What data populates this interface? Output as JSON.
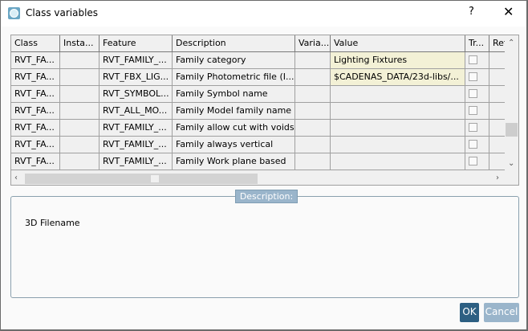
{
  "window": {
    "title": "Class variables",
    "help": "?",
    "close": "✕"
  },
  "table": {
    "columns": [
      "Class",
      "Insta...",
      "Feature",
      "Description",
      "Varia...",
      "Value",
      "Tr...",
      "Ref"
    ],
    "rows": [
      {
        "class": "RVT_FA...",
        "instance": "",
        "feature": "RVT_FAMILY_...",
        "description": "Family category",
        "variant": "",
        "value": "Lighting Fixtures",
        "tr": false
      },
      {
        "class": "RVT_FA...",
        "instance": "",
        "feature": "RVT_FBX_LIG...",
        "description": "Family Photometric file (I...",
        "variant": "",
        "value": "$CADENAS_DATA/23d-libs/...",
        "tr": false
      },
      {
        "class": "RVT_FA...",
        "instance": "",
        "feature": "RVT_SYMBOL...",
        "description": "Family Symbol name",
        "variant": "",
        "value": "",
        "tr": false
      },
      {
        "class": "RVT_FA...",
        "instance": "",
        "feature": "RVT_ALL_MO...",
        "description": "Family Model family name",
        "variant": "",
        "value": "",
        "tr": false
      },
      {
        "class": "RVT_FA...",
        "instance": "",
        "feature": "RVT_FAMILY_...",
        "description": "Family allow cut with voids",
        "variant": "",
        "value": "",
        "tr": false
      },
      {
        "class": "RVT_FA...",
        "instance": "",
        "feature": "RVT_FAMILY_...",
        "description": "Family always vertical",
        "variant": "",
        "value": "",
        "tr": false
      },
      {
        "class": "RVT_FA...",
        "instance": "",
        "feature": "RVT_FAMILY_...",
        "description": "Family Work plane based",
        "variant": "",
        "value": "",
        "tr": false
      }
    ]
  },
  "description": {
    "legend": "Description:",
    "text": "3D Filename"
  },
  "buttons": {
    "ok": "OK",
    "cancel": "Cancel"
  },
  "colors": {
    "ok": "#2d5f82",
    "cancel": "#9ab5cb",
    "value_highlight": "#f3f1d6"
  }
}
